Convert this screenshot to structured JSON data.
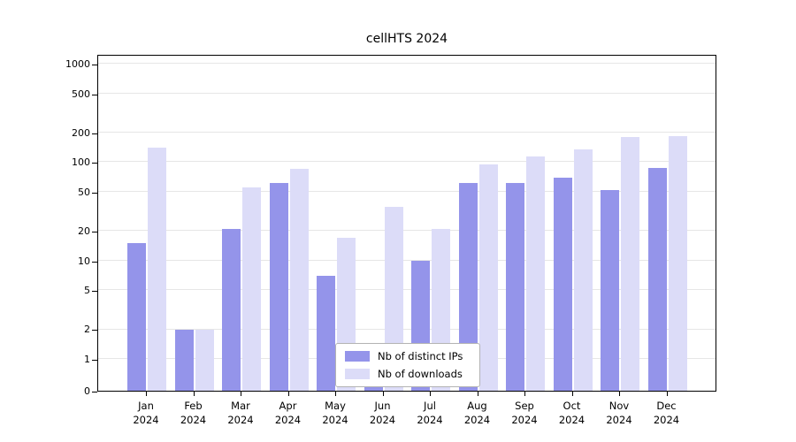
{
  "title": "cellHTS 2024",
  "chart_data": {
    "type": "bar",
    "title": "cellHTS 2024",
    "categories": [
      "Jan",
      "Feb",
      "Mar",
      "Apr",
      "May",
      "Jun",
      "Jul",
      "Aug",
      "Sep",
      "Oct",
      "Nov",
      "Dec"
    ],
    "category_year": "2024",
    "series": [
      {
        "name": "Nb of distinct IPs",
        "color": "#9494ea",
        "values": [
          15,
          2,
          21,
          62,
          7,
          1,
          10,
          62,
          62,
          70,
          52,
          88
        ]
      },
      {
        "name": "Nb of downloads",
        "color": "#dcdcf8",
        "values": [
          140,
          2,
          55,
          85,
          17,
          35,
          21,
          95,
          115,
          135,
          180,
          185
        ]
      }
    ],
    "yticks": [
      0,
      1,
      2,
      5,
      10,
      20,
      50,
      100,
      200,
      500,
      1000
    ],
    "ylim": [
      0,
      1000
    ],
    "yscale": "log-like",
    "xlabel": "",
    "ylabel": "",
    "grid": true,
    "gridline_color": "#e6e6e6",
    "legend_position": "bottom-center-inside"
  }
}
